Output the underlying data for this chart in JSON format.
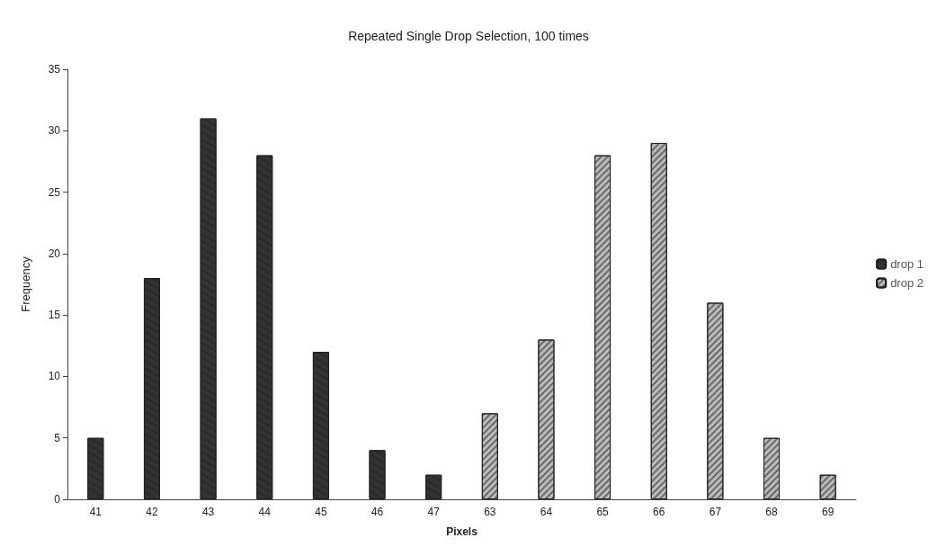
{
  "chart_data": {
    "type": "bar",
    "title": "Repeated Single Drop Selection, 100 times",
    "xlabel": "Pixels",
    "ylabel": "Frequency",
    "categories": [
      "41",
      "42",
      "43",
      "44",
      "45",
      "46",
      "47",
      "63",
      "64",
      "65",
      "66",
      "67",
      "68",
      "69"
    ],
    "series": [
      {
        "name": "drop 1",
        "color": "#333333",
        "values": [
          5,
          18,
          31,
          28,
          12,
          4,
          2,
          null,
          null,
          null,
          null,
          null,
          null,
          null
        ]
      },
      {
        "name": "drop 2",
        "color": "#bbbbbb",
        "values": [
          null,
          null,
          null,
          null,
          null,
          null,
          null,
          7,
          13,
          28,
          29,
          16,
          5,
          2
        ]
      }
    ],
    "ylim": [
      0,
      35
    ],
    "yticks": [
      0,
      5,
      10,
      15,
      20,
      25,
      30,
      35
    ],
    "grid": false,
    "legend": "right"
  }
}
